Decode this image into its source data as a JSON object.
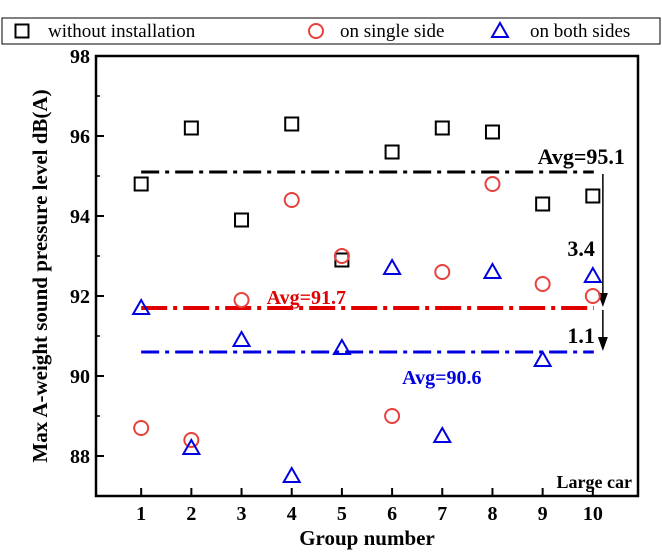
{
  "chart_data": {
    "type": "scatter",
    "title": "",
    "xlabel": "Group number",
    "ylabel": "Max A-weight sound pressure level dB(A)",
    "xlim": [
      0.1,
      10.9
    ],
    "ylim": [
      87,
      98
    ],
    "x": [
      1,
      2,
      3,
      4,
      5,
      6,
      7,
      8,
      9,
      10
    ],
    "x_ticks": [
      "1",
      "2",
      "3",
      "4",
      "5",
      "6",
      "7",
      "8",
      "9",
      "10"
    ],
    "y_ticks": [
      "88",
      "90",
      "92",
      "94",
      "96",
      "98"
    ],
    "grid": false,
    "legend_position": "top",
    "annotation": "Large car",
    "series": [
      {
        "name": "without installation",
        "marker": "square",
        "color": "#000000",
        "values": [
          94.8,
          96.2,
          93.9,
          96.3,
          92.9,
          95.6,
          96.2,
          96.1,
          94.3,
          94.5
        ]
      },
      {
        "name": "on single side",
        "marker": "circle",
        "color": "#e8413c",
        "values": [
          88.7,
          88.4,
          91.9,
          94.4,
          93.0,
          89.0,
          92.6,
          94.8,
          92.3,
          92.0
        ]
      },
      {
        "name": "on both sides",
        "marker": "triangle",
        "color": "#0000e0",
        "values": [
          91.7,
          88.2,
          90.9,
          87.5,
          90.7,
          92.7,
          88.5,
          92.6,
          90.4,
          92.5
        ]
      }
    ],
    "averages": [
      {
        "label": "Avg=95.1",
        "value": 95.1,
        "color": "#000000"
      },
      {
        "label": "Avg=91.7",
        "value": 91.7,
        "color": "#e00000"
      },
      {
        "label": "Avg=90.6",
        "value": 90.6,
        "color": "#0000e0"
      }
    ],
    "differences": [
      {
        "label": "3.4",
        "from": 95.1,
        "to": 91.7
      },
      {
        "label": "1.1",
        "from": 91.7,
        "to": 90.6
      }
    ]
  }
}
